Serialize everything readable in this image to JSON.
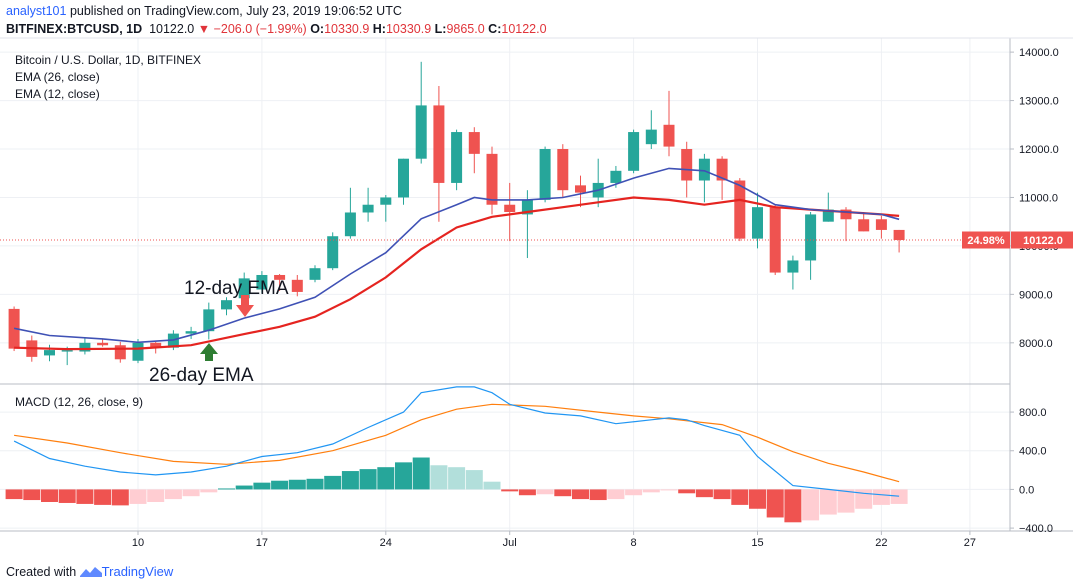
{
  "header": {
    "user": "analyst101",
    "published_text": "published on TradingView.com, July 23, 2019 19:06:52 UTC",
    "symbol": "BITFINEX:BTCUSD, 1D",
    "last": "10122.0",
    "change": "▼ −206.0 (−1.99%)",
    "o_label": "O:",
    "o_value": "10330.9",
    "h_label": "H:",
    "h_value": "10330.9",
    "l_label": "L:",
    "l_value": "9865.0",
    "c_label": "C:",
    "c_value": "10122.0"
  },
  "legend": {
    "title": "Bitcoin / U.S. Dollar, 1D, BITFINEX",
    "ema26": "EMA (26, close)",
    "ema12": "EMA (12, close)",
    "macd": "MACD (12, 26, close, 9)"
  },
  "annotations": {
    "ema12_label": "12-day EMA",
    "ema26_label": "26-day EMA"
  },
  "price_tag": {
    "percent": "24.98%",
    "value": "10122.0"
  },
  "footer": {
    "created_with": "Created with",
    "brand": "TradingView"
  },
  "colors": {
    "up": "#26a69a",
    "down": "#ef5350",
    "ema12": "#3f51b5",
    "ema26": "#e52420",
    "macd_line": "#2196f3",
    "signal_line": "#ff7f0e",
    "hist_up_strong": "#26a69a",
    "hist_up_weak": "#b2dfdb",
    "hist_down_strong": "#ef5350",
    "hist_down_weak": "#ffcdd2",
    "arrow_up": "#2e7d32",
    "arrow_down": "#ef5350"
  },
  "chart_data": {
    "type": "candlestick",
    "symbol": "BITFINEX:BTCUSD",
    "interval": "1D",
    "x_tick_labels": [
      "10",
      "17",
      "24",
      "Jul",
      "8",
      "15",
      "22",
      "27"
    ],
    "x_tick_days": [
      10,
      17,
      24,
      31,
      38,
      45,
      52,
      57
    ],
    "price_axis": {
      "ylim": [
        7150,
        14250
      ],
      "ticks": [
        8000,
        9000,
        10000,
        11000,
        12000,
        13000,
        14000
      ],
      "tick_labels": [
        "8000.0",
        "9000.0",
        "10000.0",
        "11000.0",
        "12000.0",
        "13000.0",
        "14000.0"
      ]
    },
    "macd_axis": {
      "ylim": [
        -430,
        1080
      ],
      "ticks": [
        -400,
        0,
        400,
        800
      ],
      "tick_labels": [
        "−400.0",
        "0.0",
        "400.0",
        "800.0"
      ]
    },
    "last_price": 10122.0,
    "candles": [
      {
        "day": 3,
        "o": 8700,
        "h": 8750,
        "l": 7830,
        "c": 7880
      },
      {
        "day": 4,
        "o": 8050,
        "h": 8150,
        "l": 7610,
        "c": 7710
      },
      {
        "day": 5,
        "o": 7740,
        "h": 7960,
        "l": 7620,
        "c": 7850
      },
      {
        "day": 6,
        "o": 7850,
        "h": 7920,
        "l": 7540,
        "c": 7850
      },
      {
        "day": 7,
        "o": 7820,
        "h": 8100,
        "l": 7760,
        "c": 8000
      },
      {
        "day": 8,
        "o": 8000,
        "h": 8070,
        "l": 7920,
        "c": 7950
      },
      {
        "day": 9,
        "o": 7950,
        "h": 8020,
        "l": 7590,
        "c": 7660
      },
      {
        "day": 10,
        "o": 7630,
        "h": 8080,
        "l": 7580,
        "c": 8000
      },
      {
        "day": 11,
        "o": 8000,
        "h": 8020,
        "l": 7780,
        "c": 7900
      },
      {
        "day": 12,
        "o": 7900,
        "h": 8260,
        "l": 7850,
        "c": 8190
      },
      {
        "day": 13,
        "o": 8190,
        "h": 8330,
        "l": 8080,
        "c": 8240
      },
      {
        "day": 14,
        "o": 8240,
        "h": 8830,
        "l": 8070,
        "c": 8690
      },
      {
        "day": 15,
        "o": 8690,
        "h": 8940,
        "l": 8570,
        "c": 8880
      },
      {
        "day": 16,
        "o": 8920,
        "h": 9450,
        "l": 8860,
        "c": 9330
      },
      {
        "day": 17,
        "o": 9100,
        "h": 9480,
        "l": 9020,
        "c": 9400
      },
      {
        "day": 18,
        "o": 9400,
        "h": 9420,
        "l": 9070,
        "c": 9300
      },
      {
        "day": 19,
        "o": 9300,
        "h": 9400,
        "l": 8960,
        "c": 9050
      },
      {
        "day": 20,
        "o": 9300,
        "h": 9600,
        "l": 9250,
        "c": 9540
      },
      {
        "day": 21,
        "o": 9540,
        "h": 10280,
        "l": 9500,
        "c": 10200
      },
      {
        "day": 22,
        "o": 10200,
        "h": 11200,
        "l": 10150,
        "c": 10690
      },
      {
        "day": 23,
        "o": 10690,
        "h": 11200,
        "l": 10500,
        "c": 10850
      },
      {
        "day": 24,
        "o": 10850,
        "h": 11050,
        "l": 10500,
        "c": 11000
      },
      {
        "day": 25,
        "o": 11000,
        "h": 11800,
        "l": 10850,
        "c": 11800
      },
      {
        "day": 26,
        "o": 11800,
        "h": 13800,
        "l": 11700,
        "c": 12900
      },
      {
        "day": 27,
        "o": 12900,
        "h": 13300,
        "l": 10500,
        "c": 11300
      },
      {
        "day": 28,
        "o": 11300,
        "h": 12400,
        "l": 11150,
        "c": 12350
      },
      {
        "day": 29,
        "o": 12350,
        "h": 12450,
        "l": 11500,
        "c": 11900
      },
      {
        "day": 30,
        "o": 11900,
        "h": 12050,
        "l": 10650,
        "c": 10850
      },
      {
        "day": 31,
        "o": 10850,
        "h": 11300,
        "l": 10100,
        "c": 10700
      },
      {
        "day": 32,
        "o": 10650,
        "h": 11150,
        "l": 9750,
        "c": 10950
      },
      {
        "day": 33,
        "o": 10950,
        "h": 12050,
        "l": 10900,
        "c": 12000
      },
      {
        "day": 34,
        "o": 12000,
        "h": 12100,
        "l": 11000,
        "c": 11150
      },
      {
        "day": 35,
        "o": 11250,
        "h": 11450,
        "l": 10800,
        "c": 11100
      },
      {
        "day": 36,
        "o": 11000,
        "h": 11800,
        "l": 10800,
        "c": 11300
      },
      {
        "day": 37,
        "o": 11300,
        "h": 11650,
        "l": 11200,
        "c": 11550
      },
      {
        "day": 38,
        "o": 11550,
        "h": 12400,
        "l": 11500,
        "c": 12350
      },
      {
        "day": 39,
        "o": 12100,
        "h": 12800,
        "l": 12000,
        "c": 12400
      },
      {
        "day": 40,
        "o": 12500,
        "h": 13200,
        "l": 11850,
        "c": 12050
      },
      {
        "day": 41,
        "o": 12000,
        "h": 12150,
        "l": 11000,
        "c": 11350
      },
      {
        "day": 42,
        "o": 11350,
        "h": 11900,
        "l": 10900,
        "c": 11800
      },
      {
        "day": 43,
        "o": 11800,
        "h": 11850,
        "l": 10950,
        "c": 11350
      },
      {
        "day": 44,
        "o": 11350,
        "h": 11400,
        "l": 10100,
        "c": 10150
      },
      {
        "day": 45,
        "o": 10150,
        "h": 11100,
        "l": 9950,
        "c": 10800
      },
      {
        "day": 46,
        "o": 10800,
        "h": 10850,
        "l": 9400,
        "c": 9450
      },
      {
        "day": 47,
        "o": 9450,
        "h": 9800,
        "l": 9100,
        "c": 9700
      },
      {
        "day": 48,
        "o": 9700,
        "h": 10700,
        "l": 9300,
        "c": 10650
      },
      {
        "day": 49,
        "o": 10500,
        "h": 11100,
        "l": 10500,
        "c": 10750
      },
      {
        "day": 50,
        "o": 10750,
        "h": 10800,
        "l": 10100,
        "c": 10550
      },
      {
        "day": 51,
        "o": 10550,
        "h": 10700,
        "l": 10300,
        "c": 10300
      },
      {
        "day": 52,
        "o": 10550,
        "h": 10620,
        "l": 10150,
        "c": 10330
      },
      {
        "day": 53,
        "o": 10330,
        "h": 10330,
        "l": 9865,
        "c": 10122
      }
    ],
    "ema12": [
      {
        "day": 3,
        "v": 8300
      },
      {
        "day": 5,
        "v": 8150
      },
      {
        "day": 8,
        "v": 8080
      },
      {
        "day": 10,
        "v": 8010
      },
      {
        "day": 12,
        "v": 8060
      },
      {
        "day": 14,
        "v": 8260
      },
      {
        "day": 16,
        "v": 8510
      },
      {
        "day": 18,
        "v": 8700
      },
      {
        "day": 20,
        "v": 8940
      },
      {
        "day": 22,
        "v": 9420
      },
      {
        "day": 24,
        "v": 9860
      },
      {
        "day": 26,
        "v": 10560
      },
      {
        "day": 28,
        "v": 10850
      },
      {
        "day": 29,
        "v": 11000
      },
      {
        "day": 30,
        "v": 10950
      },
      {
        "day": 32,
        "v": 10950
      },
      {
        "day": 34,
        "v": 11000
      },
      {
        "day": 36,
        "v": 11150
      },
      {
        "day": 38,
        "v": 11400
      },
      {
        "day": 40,
        "v": 11600
      },
      {
        "day": 42,
        "v": 11550
      },
      {
        "day": 44,
        "v": 11250
      },
      {
        "day": 46,
        "v": 10850
      },
      {
        "day": 48,
        "v": 10750
      },
      {
        "day": 50,
        "v": 10700
      },
      {
        "day": 52,
        "v": 10650
      },
      {
        "day": 53,
        "v": 10550
      }
    ],
    "ema26": [
      {
        "day": 3,
        "v": 7900
      },
      {
        "day": 6,
        "v": 7870
      },
      {
        "day": 10,
        "v": 7880
      },
      {
        "day": 13,
        "v": 7950
      },
      {
        "day": 16,
        "v": 8180
      },
      {
        "day": 18,
        "v": 8330
      },
      {
        "day": 20,
        "v": 8540
      },
      {
        "day": 22,
        "v": 8900
      },
      {
        "day": 24,
        "v": 9350
      },
      {
        "day": 26,
        "v": 9930
      },
      {
        "day": 28,
        "v": 10380
      },
      {
        "day": 30,
        "v": 10600
      },
      {
        "day": 32,
        "v": 10700
      },
      {
        "day": 34,
        "v": 10800
      },
      {
        "day": 36,
        "v": 10900
      },
      {
        "day": 38,
        "v": 11000
      },
      {
        "day": 40,
        "v": 10950
      },
      {
        "day": 42,
        "v": 10850
      },
      {
        "day": 44,
        "v": 10950
      },
      {
        "day": 46,
        "v": 10800
      },
      {
        "day": 48,
        "v": 10750
      },
      {
        "day": 50,
        "v": 10700
      },
      {
        "day": 52,
        "v": 10650
      },
      {
        "day": 53,
        "v": 10620
      }
    ],
    "macd_line": [
      {
        "day": 3,
        "v": 500
      },
      {
        "day": 5,
        "v": 320
      },
      {
        "day": 7,
        "v": 240
      },
      {
        "day": 9,
        "v": 180
      },
      {
        "day": 11,
        "v": 150
      },
      {
        "day": 13,
        "v": 180
      },
      {
        "day": 15,
        "v": 240
      },
      {
        "day": 17,
        "v": 340
      },
      {
        "day": 19,
        "v": 380
      },
      {
        "day": 21,
        "v": 470
      },
      {
        "day": 23,
        "v": 640
      },
      {
        "day": 25,
        "v": 800
      },
      {
        "day": 26,
        "v": 1000
      },
      {
        "day": 28,
        "v": 1060
      },
      {
        "day": 29,
        "v": 1060
      },
      {
        "day": 30,
        "v": 1000
      },
      {
        "day": 31,
        "v": 880
      },
      {
        "day": 33,
        "v": 790
      },
      {
        "day": 35,
        "v": 760
      },
      {
        "day": 37,
        "v": 680
      },
      {
        "day": 39,
        "v": 720
      },
      {
        "day": 40,
        "v": 740
      },
      {
        "day": 41,
        "v": 720
      },
      {
        "day": 42,
        "v": 660
      },
      {
        "day": 44,
        "v": 560
      },
      {
        "day": 45,
        "v": 340
      },
      {
        "day": 47,
        "v": 40
      },
      {
        "day": 49,
        "v": 0
      },
      {
        "day": 51,
        "v": -40
      },
      {
        "day": 53,
        "v": -70
      }
    ],
    "signal_line": [
      {
        "day": 3,
        "v": 560
      },
      {
        "day": 6,
        "v": 480
      },
      {
        "day": 9,
        "v": 380
      },
      {
        "day": 12,
        "v": 290
      },
      {
        "day": 15,
        "v": 260
      },
      {
        "day": 18,
        "v": 300
      },
      {
        "day": 21,
        "v": 400
      },
      {
        "day": 24,
        "v": 560
      },
      {
        "day": 26,
        "v": 720
      },
      {
        "day": 28,
        "v": 830
      },
      {
        "day": 30,
        "v": 880
      },
      {
        "day": 33,
        "v": 860
      },
      {
        "day": 36,
        "v": 800
      },
      {
        "day": 38,
        "v": 760
      },
      {
        "day": 40,
        "v": 730
      },
      {
        "day": 43,
        "v": 670
      },
      {
        "day": 45,
        "v": 540
      },
      {
        "day": 47,
        "v": 390
      },
      {
        "day": 49,
        "v": 270
      },
      {
        "day": 51,
        "v": 180
      },
      {
        "day": 53,
        "v": 80
      }
    ],
    "histogram": [
      {
        "day": 3,
        "v": -100
      },
      {
        "day": 4,
        "v": -110
      },
      {
        "day": 5,
        "v": -130
      },
      {
        "day": 6,
        "v": -140
      },
      {
        "day": 7,
        "v": -150
      },
      {
        "day": 8,
        "v": -160
      },
      {
        "day": 9,
        "v": -165
      },
      {
        "day": 10,
        "v": -150
      },
      {
        "day": 11,
        "v": -130
      },
      {
        "day": 12,
        "v": -100
      },
      {
        "day": 13,
        "v": -70
      },
      {
        "day": 14,
        "v": -30
      },
      {
        "day": 15,
        "v": 10
      },
      {
        "day": 16,
        "v": 40
      },
      {
        "day": 17,
        "v": 70
      },
      {
        "day": 18,
        "v": 90
      },
      {
        "day": 19,
        "v": 100
      },
      {
        "day": 20,
        "v": 110
      },
      {
        "day": 21,
        "v": 140
      },
      {
        "day": 22,
        "v": 190
      },
      {
        "day": 23,
        "v": 210
      },
      {
        "day": 24,
        "v": 230
      },
      {
        "day": 25,
        "v": 280
      },
      {
        "day": 26,
        "v": 330
      },
      {
        "day": 27,
        "v": 250
      },
      {
        "day": 28,
        "v": 230
      },
      {
        "day": 29,
        "v": 200
      },
      {
        "day": 30,
        "v": 80
      },
      {
        "day": 31,
        "v": -20
      },
      {
        "day": 32,
        "v": -60
      },
      {
        "day": 33,
        "v": -50
      },
      {
        "day": 34,
        "v": -70
      },
      {
        "day": 35,
        "v": -100
      },
      {
        "day": 36,
        "v": -110
      },
      {
        "day": 37,
        "v": -100
      },
      {
        "day": 38,
        "v": -60
      },
      {
        "day": 39,
        "v": -30
      },
      {
        "day": 40,
        "v": -10
      },
      {
        "day": 41,
        "v": -40
      },
      {
        "day": 42,
        "v": -80
      },
      {
        "day": 43,
        "v": -100
      },
      {
        "day": 44,
        "v": -160
      },
      {
        "day": 45,
        "v": -200
      },
      {
        "day": 46,
        "v": -290
      },
      {
        "day": 47,
        "v": -340
      },
      {
        "day": 48,
        "v": -320
      },
      {
        "day": 49,
        "v": -260
      },
      {
        "day": 50,
        "v": -240
      },
      {
        "day": 51,
        "v": -200
      },
      {
        "day": 52,
        "v": -160
      },
      {
        "day": 53,
        "v": -150
      }
    ]
  }
}
